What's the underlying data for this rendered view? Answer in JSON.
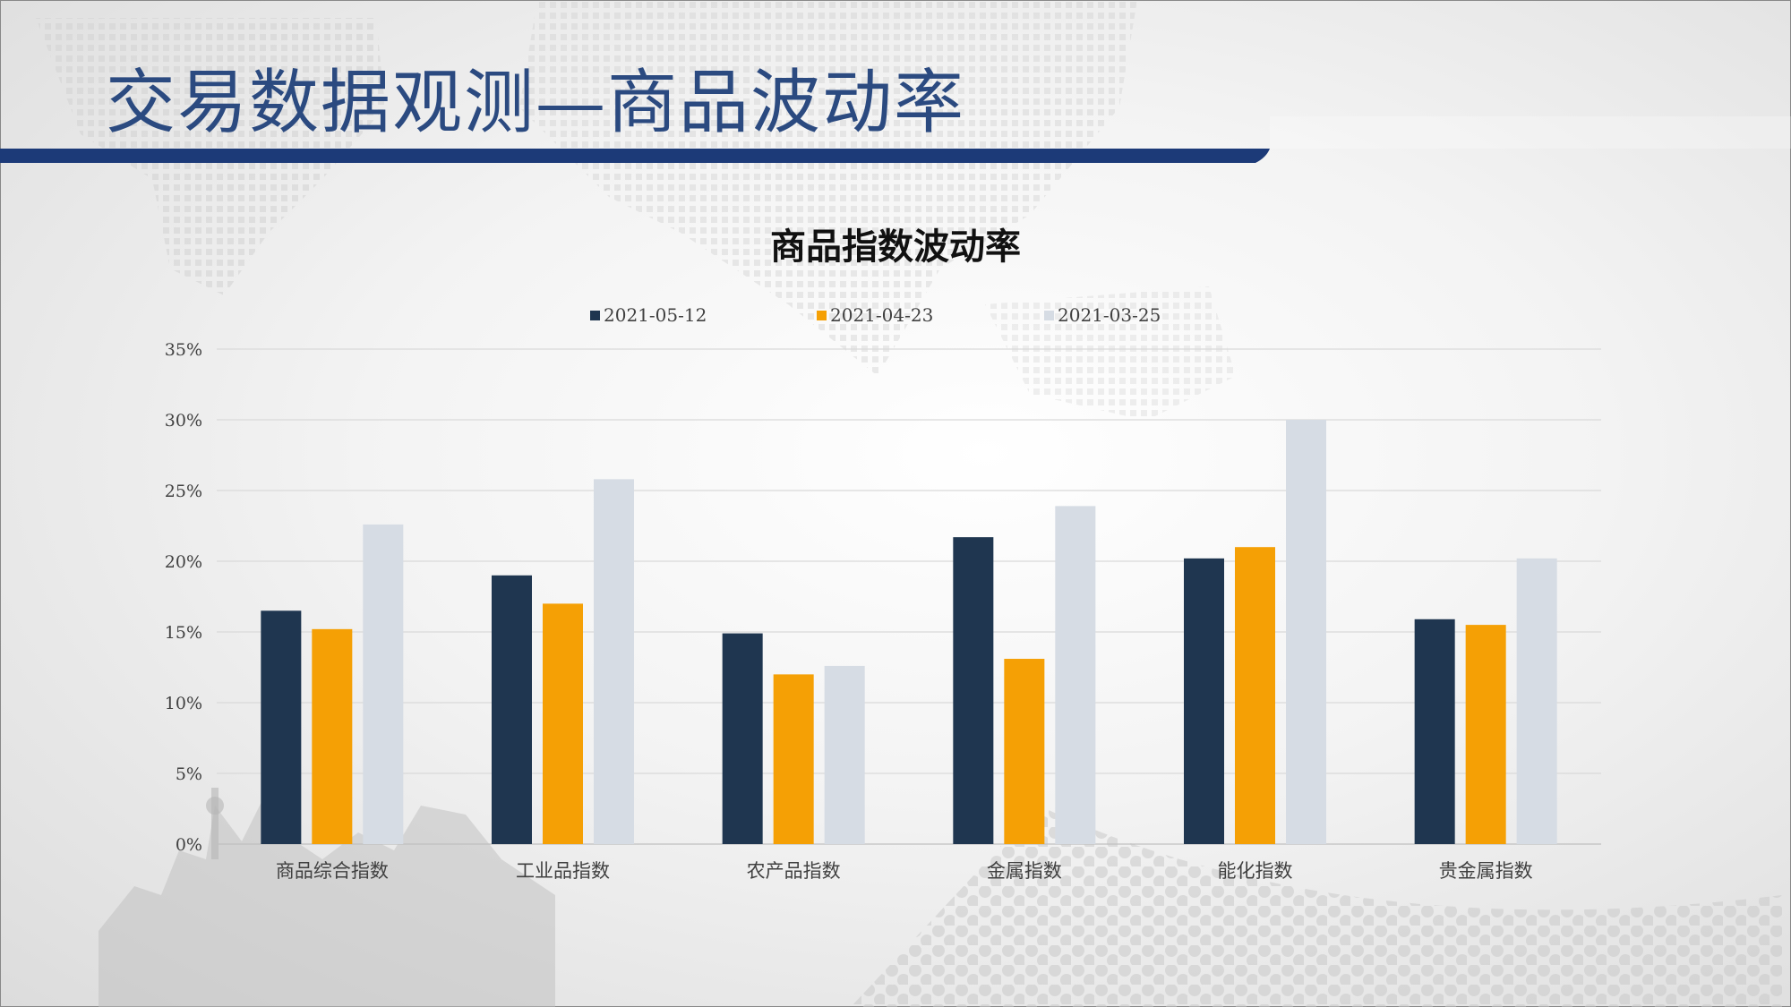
{
  "slide": {
    "title": "交易数据观测—商品波动率"
  },
  "colors": {
    "title": "#2b4a80",
    "bar_band": "#1c3a78",
    "series": [
      "#1f3650",
      "#f5a005",
      "#d6dce4"
    ]
  },
  "chart_data": {
    "type": "bar",
    "title": "商品指数波动率",
    "categories": [
      "商品综合指数",
      "工业品指数",
      "农产品指数",
      "金属指数",
      "能化指数",
      "贵金属指数"
    ],
    "series": [
      {
        "name": "2021-05-12",
        "values": [
          16.5,
          19.0,
          14.9,
          21.7,
          20.2,
          15.9
        ]
      },
      {
        "name": "2021-04-23",
        "values": [
          15.2,
          17.0,
          12.0,
          13.1,
          21.0,
          15.5
        ]
      },
      {
        "name": "2021-03-25",
        "values": [
          22.6,
          25.8,
          12.6,
          23.9,
          30.0,
          20.2
        ]
      }
    ],
    "ylim": [
      0,
      35
    ],
    "yticks": [
      "0%",
      "5%",
      "10%",
      "15%",
      "20%",
      "25%",
      "30%",
      "35%"
    ],
    "xlabel": "",
    "ylabel": "",
    "grid": true,
    "legend_position": "top"
  }
}
